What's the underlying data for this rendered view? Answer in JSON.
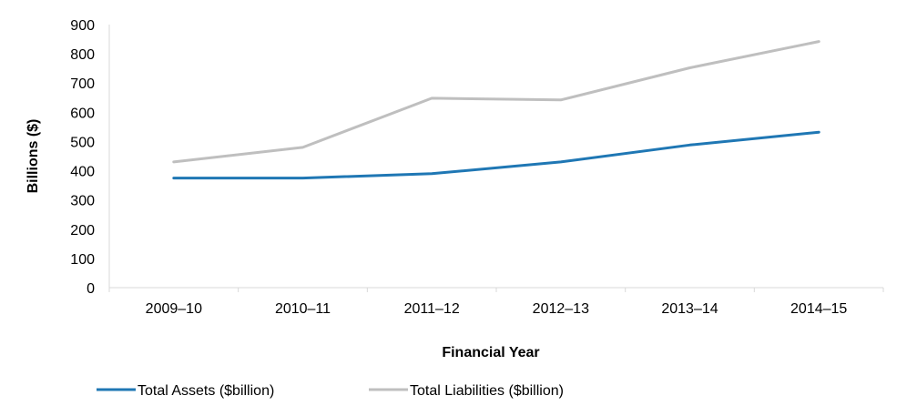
{
  "chart_data": {
    "type": "line",
    "categories": [
      "2009–10",
      "2010–11",
      "2011–12",
      "2012–13",
      "2013–14",
      "2014–15"
    ],
    "series": [
      {
        "name": "Total Assets ($billion)",
        "color": "#1f77b4",
        "values": [
          375,
          375,
          390,
          430,
          488,
          532
        ]
      },
      {
        "name": "Total Liabilities ($billion)",
        "color": "#bfbfbf",
        "values": [
          430,
          480,
          648,
          642,
          752,
          842
        ]
      }
    ],
    "title": "",
    "xlabel": "Financial Year",
    "ylabel": "Billions ($)",
    "ylim": [
      0,
      900
    ],
    "yticks": [
      "0",
      "100",
      "200",
      "300",
      "400",
      "500",
      "600",
      "700",
      "800",
      "900"
    ],
    "grid": false,
    "legend": "bottom"
  }
}
